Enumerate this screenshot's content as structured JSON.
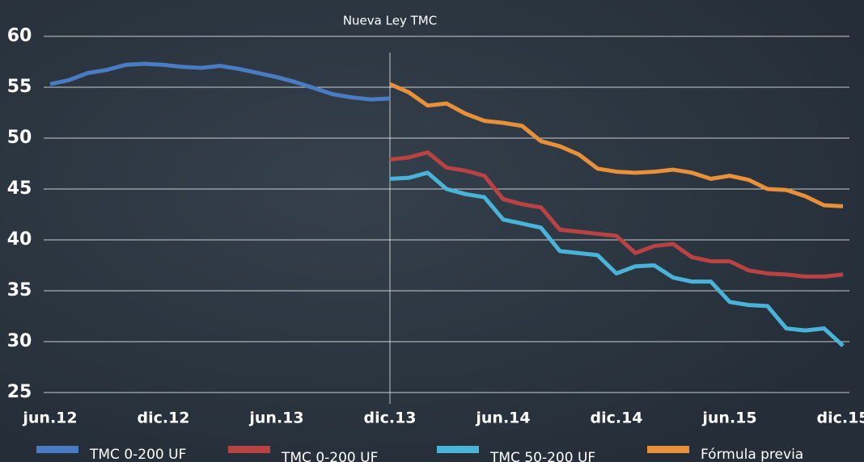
{
  "chart_data": {
    "type": "line",
    "categories": [
      "jun.12",
      null,
      null,
      null,
      null,
      null,
      "dic.12",
      null,
      null,
      null,
      null,
      null,
      "jun.13",
      null,
      null,
      null,
      null,
      null,
      "dic.13",
      null,
      null,
      null,
      null,
      null,
      "jun.14",
      null,
      null,
      null,
      null,
      null,
      "dic.14",
      null,
      null,
      null,
      null,
      null,
      "jun.15",
      null,
      null,
      null,
      null,
      null,
      "dic.15"
    ],
    "series": [
      {
        "name": "TMC 0-200 UF",
        "color": "#4a7cc4",
        "values": [
          55.3,
          55.7,
          56.4,
          56.7,
          57.2,
          57.3,
          57.2,
          57.0,
          56.9,
          57.1,
          56.8,
          56.4,
          56.0,
          55.5,
          54.9,
          54.3,
          54.0,
          53.8,
          53.9,
          null,
          null,
          null,
          null,
          null,
          null,
          null,
          null,
          null,
          null,
          null,
          null,
          null,
          null,
          null,
          null,
          null,
          null,
          null,
          null,
          null,
          null,
          null,
          null
        ]
      },
      {
        "name": "TMC 0-200 UF",
        "color": "#b94242",
        "values": [
          null,
          null,
          null,
          null,
          null,
          null,
          null,
          null,
          null,
          null,
          null,
          null,
          null,
          null,
          null,
          null,
          null,
          null,
          47.9,
          48.1,
          48.6,
          47.1,
          46.8,
          46.3,
          44.0,
          43.5,
          43.2,
          41.0,
          40.8,
          40.6,
          40.4,
          38.7,
          39.4,
          39.6,
          38.3,
          37.9,
          37.9,
          37.0,
          36.7,
          36.6,
          36.4,
          36.4,
          36.6
        ]
      },
      {
        "name": "TMC 50-200 UF",
        "color": "#4ab4d8",
        "values": [
          null,
          null,
          null,
          null,
          null,
          null,
          null,
          null,
          null,
          null,
          null,
          null,
          null,
          null,
          null,
          null,
          null,
          null,
          46.0,
          46.1,
          46.6,
          45.0,
          44.5,
          44.2,
          42.0,
          41.6,
          41.2,
          38.9,
          38.7,
          38.5,
          36.7,
          37.4,
          37.5,
          36.3,
          35.9,
          35.9,
          33.9,
          33.6,
          33.5,
          31.3,
          31.1,
          31.3,
          29.6
        ]
      },
      {
        "name": "Fórmula previa",
        "color": "#e8913a",
        "values": [
          null,
          null,
          null,
          null,
          null,
          null,
          null,
          null,
          null,
          null,
          null,
          null,
          null,
          null,
          null,
          null,
          null,
          null,
          55.3,
          54.5,
          53.2,
          53.4,
          52.4,
          51.7,
          51.5,
          51.2,
          49.7,
          49.2,
          48.4,
          47.0,
          46.7,
          46.6,
          46.7,
          46.9,
          46.6,
          46.0,
          46.3,
          45.9,
          45.0,
          44.9,
          44.3,
          43.4,
          43.3
        ]
      }
    ],
    "annotation": {
      "label": "Nueva Ley TMC",
      "at": "dic.13"
    },
    "ylim": [
      25,
      60
    ],
    "yticks": [
      25,
      30,
      35,
      40,
      45,
      50,
      55,
      60
    ],
    "grid": true
  }
}
